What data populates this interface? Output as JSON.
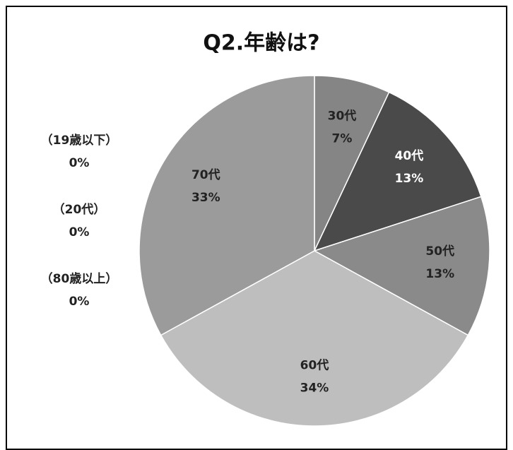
{
  "chart_data": {
    "type": "pie",
    "title": "Q2.年齢は?",
    "categories": [
      "（19歳以下）",
      "（20代）",
      "30代",
      "40代",
      "50代",
      "60代",
      "70代",
      "（80歳以上）"
    ],
    "values": [
      0,
      0,
      7,
      13,
      13,
      34,
      33,
      0
    ],
    "value_labels": [
      "0%",
      "0%",
      "7%",
      "13%",
      "13%",
      "34%",
      "33%",
      "0%"
    ],
    "colors": [
      "#7a7a7a",
      "#6a6a6a",
      "#858585",
      "#4a4a4a",
      "#8a8a8a",
      "#bebebe",
      "#9b9b9b",
      "#aaaaaa"
    ]
  }
}
